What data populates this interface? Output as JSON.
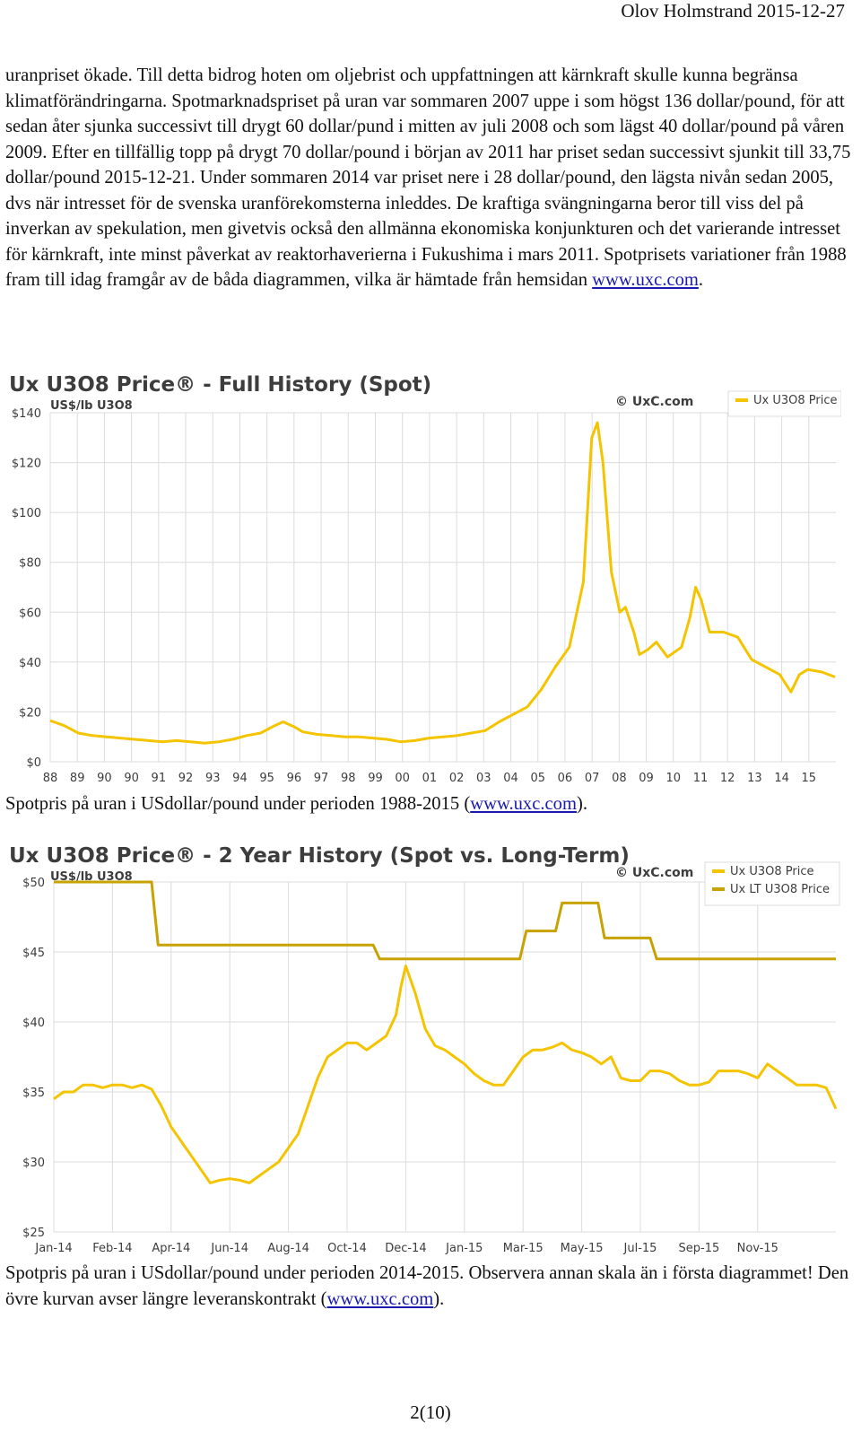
{
  "header": {
    "text": "Olov Holmstrand 2015-12-27"
  },
  "body": {
    "paragraph_before_link": "uranpriset ökade. Till detta bidrog hoten om oljebrist och uppfattningen att kärnkraft skulle kunna begränsa klimatförändringarna. Spotmarknadspriset på uran var sommaren 2007 uppe i som högst 136 dollar/pound, för att sedan åter sjunka successivt till drygt 60 dollar/pund i mitten av juli 2008 och som lägst 40 dollar/pound på våren 2009. Efter en tillfällig topp på drygt 70 dollar/pound i början av 2011 har priset sedan successivt sjunkit till 33,75 dollar/pound 2015-12-21. Under sommaren 2014 var priset nere i 28 dollar/pound, den lägsta nivån sedan 2005, dvs när intresset för de svenska uranförekomsterna inleddes. De kraftiga svängningarna beror till viss del på inverkan av spekulation, men givetvis också den allmänna ekonomiska konjunkturen och det varierande intresset för kärnkraft, inte minst påverkat av reaktorhaverierna i Fukushima i mars 2011. Spotprisets variationer från 1988 fram till idag framgår av de båda diagrammen, vilka är hämtade från hemsidan ",
    "link": "www.uxc.com",
    "after_link": "."
  },
  "caption1": {
    "before": "Spotpris på uran i USdollar/pound under perioden 1988-2015 (",
    "link": "www.uxc.com",
    "after": ")."
  },
  "caption2": {
    "before": "Spotpris på uran i USdollar/pound under perioden 2014-2015. Observera annan skala än i första diagrammet! Den övre kurvan avser längre leveranskontrakt (",
    "link": "www.uxc.com",
    "after": ")."
  },
  "page_number": "2(10)",
  "colors": {
    "spot": "#f5c400",
    "longterm": "#c8a200",
    "grid": "#dcdcdc",
    "text": "#3d3d3d"
  },
  "chart_data": [
    {
      "type": "line",
      "title": "Ux U3O8 Price® - Full History (Spot)",
      "unit_label": "US$/lb U3O8",
      "brand": "© UxC.com",
      "ylim": [
        0,
        140
      ],
      "yticks": [
        "$0",
        "$20",
        "$40",
        "$60",
        "$80",
        "$100",
        "$120",
        "$140"
      ],
      "xlim": [
        1988,
        2016
      ],
      "xticks": [
        "88",
        "89",
        "90",
        "90",
        "91",
        "92",
        "93",
        "94",
        "95",
        "96",
        "97",
        "98",
        "99",
        "00",
        "01",
        "02",
        "03",
        "04",
        "05",
        "06",
        "07",
        "08",
        "09",
        "10",
        "11",
        "12",
        "13",
        "14",
        "15"
      ],
      "series": [
        {
          "name": "Ux U3O8 Price",
          "color": "#f5c400",
          "x": [
            1988.0,
            1988.5,
            1989.0,
            1989.5,
            1990.0,
            1990.5,
            1991.0,
            1991.5,
            1992.0,
            1992.5,
            1993.0,
            1993.5,
            1994.0,
            1994.5,
            1995.0,
            1995.5,
            1996.0,
            1996.3,
            1996.7,
            1997.0,
            1997.5,
            1998.0,
            1998.5,
            1999.0,
            1999.5,
            2000.0,
            2000.5,
            2001.0,
            2001.5,
            2002.0,
            2002.5,
            2003.0,
            2003.5,
            2004.0,
            2004.5,
            2005.0,
            2005.5,
            2006.0,
            2006.5,
            2007.0,
            2007.3,
            2007.5,
            2007.7,
            2008.0,
            2008.3,
            2008.5,
            2008.8,
            2009.0,
            2009.3,
            2009.6,
            2010.0,
            2010.5,
            2010.8,
            2011.0,
            2011.2,
            2011.5,
            2012.0,
            2012.5,
            2013.0,
            2013.5,
            2014.0,
            2014.4,
            2014.7,
            2015.0,
            2015.5,
            2015.97
          ],
          "y": [
            16.5,
            14.5,
            11.5,
            10.5,
            10.0,
            9.5,
            9.0,
            8.5,
            8.0,
            8.5,
            8.0,
            7.5,
            8.0,
            9.0,
            10.5,
            11.5,
            14.5,
            16.0,
            14.0,
            12.0,
            11.0,
            10.5,
            10.0,
            10.0,
            9.5,
            9.0,
            8.0,
            8.5,
            9.5,
            10.0,
            10.5,
            11.5,
            12.5,
            16.0,
            19.0,
            22.0,
            29.0,
            38.0,
            46.0,
            72.0,
            130.0,
            136.0,
            120.0,
            76.0,
            60.0,
            62.0,
            52.0,
            43.0,
            45.0,
            48.0,
            42.0,
            46.0,
            58.0,
            70.0,
            65.0,
            52.0,
            52.0,
            50.0,
            41.0,
            38.0,
            35.0,
            28.0,
            35.0,
            37.0,
            36.0,
            34.0
          ]
        }
      ]
    },
    {
      "type": "line",
      "title": "Ux U3O8 Price® - 2 Year History (Spot vs. Long-Term)",
      "unit_label": "US$/lb U3O8",
      "brand": "© UxC.com",
      "ylim": [
        25,
        50
      ],
      "yticks": [
        "$25",
        "$30",
        "$35",
        "$40",
        "$45",
        "$50"
      ],
      "xlim": [
        0,
        24
      ],
      "xticks": [
        "Jan-14",
        "Feb-14",
        "Apr-14",
        "Jun-14",
        "Aug-14",
        "Oct-14",
        "Dec-14",
        "Jan-15",
        "Mar-15",
        "May-15",
        "Jul-15",
        "Sep-15",
        "Nov-15"
      ],
      "xtick_pos": [
        0,
        1.8,
        3.6,
        5.4,
        7.2,
        9.0,
        10.8,
        12.6,
        14.4,
        16.2,
        18.0,
        19.8,
        21.6
      ],
      "series": [
        {
          "name": "Ux U3O8 Price",
          "color": "#f5c400",
          "x": [
            0.0,
            0.3,
            0.6,
            0.9,
            1.2,
            1.5,
            1.8,
            2.1,
            2.4,
            2.7,
            3.0,
            3.3,
            3.6,
            3.9,
            4.2,
            4.5,
            4.8,
            5.1,
            5.4,
            5.7,
            6.0,
            6.3,
            6.6,
            6.9,
            7.2,
            7.5,
            7.8,
            8.1,
            8.4,
            8.7,
            9.0,
            9.3,
            9.6,
            9.9,
            10.2,
            10.5,
            10.65,
            10.8,
            11.1,
            11.4,
            11.7,
            12.0,
            12.3,
            12.6,
            12.9,
            13.2,
            13.5,
            13.8,
            14.1,
            14.4,
            14.7,
            15.0,
            15.3,
            15.6,
            15.9,
            16.2,
            16.5,
            16.8,
            17.1,
            17.4,
            17.7,
            18.0,
            18.3,
            18.6,
            18.9,
            19.2,
            19.5,
            19.8,
            20.1,
            20.4,
            20.7,
            21.0,
            21.3,
            21.6,
            21.9,
            22.2,
            22.5,
            22.8,
            23.1,
            23.4,
            23.7,
            24.0
          ],
          "y": [
            34.5,
            35.0,
            35.0,
            35.5,
            35.5,
            35.3,
            35.5,
            35.5,
            35.3,
            35.5,
            35.2,
            34.0,
            32.5,
            31.5,
            30.5,
            29.5,
            28.5,
            28.7,
            28.8,
            28.7,
            28.5,
            29.0,
            29.5,
            30.0,
            31.0,
            32.0,
            34.0,
            36.0,
            37.5,
            38.0,
            38.5,
            38.5,
            38.0,
            38.5,
            39.0,
            40.5,
            42.5,
            44.0,
            42.0,
            39.5,
            38.3,
            38.0,
            37.5,
            37.0,
            36.3,
            35.8,
            35.5,
            35.5,
            36.5,
            37.5,
            38.0,
            38.0,
            38.2,
            38.5,
            38.0,
            37.8,
            37.5,
            37.0,
            37.5,
            36.0,
            35.8,
            35.8,
            36.5,
            36.5,
            36.3,
            35.8,
            35.5,
            35.5,
            35.7,
            36.5,
            36.5,
            36.5,
            36.3,
            36.0,
            37.0,
            36.5,
            36.0,
            35.5,
            35.5,
            35.5,
            35.3,
            33.8
          ]
        },
        {
          "name": "Ux LT U3O8 Price",
          "color": "#c8a200",
          "x": [
            0.0,
            3.0,
            3.2,
            9.8,
            10.0,
            14.3,
            14.5,
            15.4,
            15.6,
            16.7,
            16.9,
            18.3,
            18.5,
            24.0
          ],
          "y": [
            50.0,
            50.0,
            45.5,
            45.5,
            44.5,
            44.5,
            46.5,
            46.5,
            48.5,
            48.5,
            46.0,
            46.0,
            44.5,
            44.5
          ]
        }
      ]
    }
  ]
}
